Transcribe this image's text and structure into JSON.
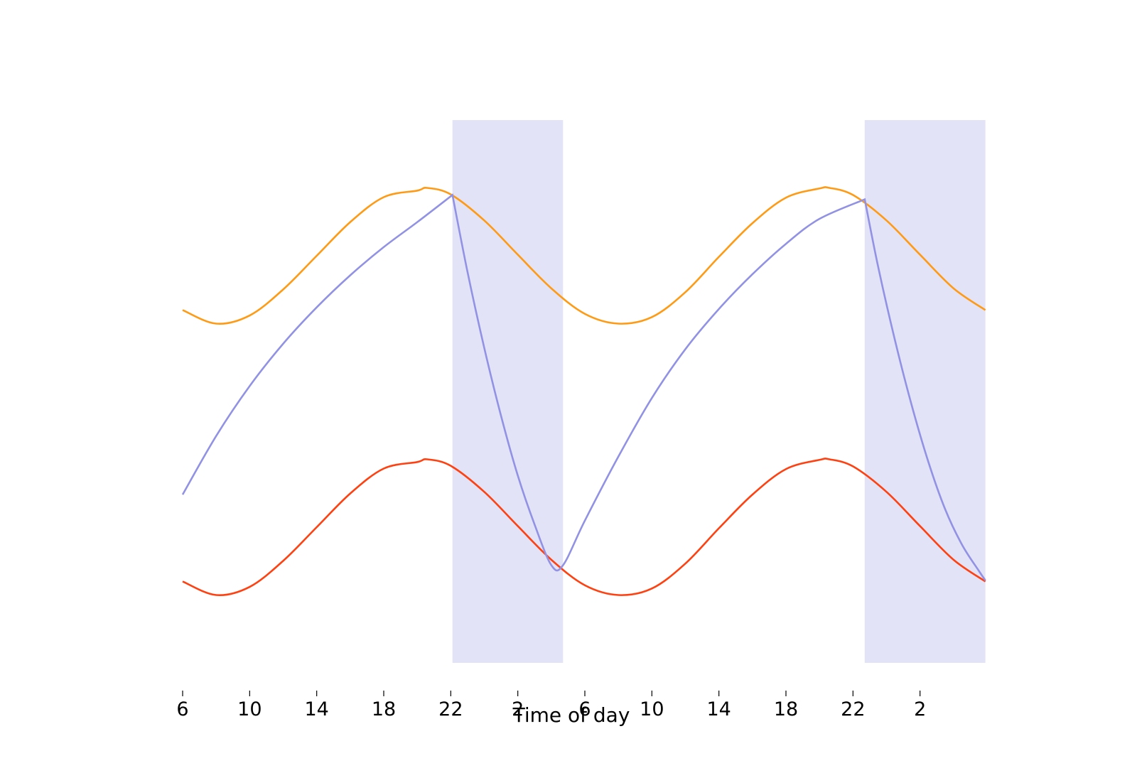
{
  "chart_data": {
    "type": "line",
    "title": "",
    "xlabel": "Time of day",
    "ylabel": "",
    "x_unit": "hours",
    "xlim": [
      6,
      54
    ],
    "ylim": [
      0,
      1
    ],
    "x_ticks": [
      {
        "x": 6,
        "label": "6"
      },
      {
        "x": 10,
        "label": "10"
      },
      {
        "x": 14,
        "label": "14"
      },
      {
        "x": 18,
        "label": "18"
      },
      {
        "x": 22,
        "label": "22"
      },
      {
        "x": 26,
        "label": "2"
      },
      {
        "x": 30,
        "label": "6"
      },
      {
        "x": 34,
        "label": "10"
      },
      {
        "x": 38,
        "label": "14"
      },
      {
        "x": 42,
        "label": "18"
      },
      {
        "x": 46,
        "label": "22"
      },
      {
        "x": 50,
        "label": "2"
      }
    ],
    "grid": false,
    "legend": "none",
    "shaded_regions": [
      {
        "x_start": 22.1,
        "x_end": 28.7,
        "y_start": 0,
        "y_end": 1,
        "color": "#e3e3f7"
      },
      {
        "x_start": 46.7,
        "x_end": 53.9,
        "y_start": 0,
        "y_end": 1,
        "color": "#e3e3f7"
      }
    ],
    "series": [
      {
        "color": "#ff9a14",
        "x": [
          6,
          8,
          10,
          12,
          14,
          16,
          18,
          20,
          20.6,
          22,
          24,
          26,
          28,
          30,
          32,
          34,
          36,
          38,
          40,
          42,
          44,
          44.6,
          46,
          48,
          50,
          52,
          53.9
        ],
        "y": [
          0.65,
          0.625,
          0.64,
          0.688,
          0.75,
          0.812,
          0.858,
          0.87,
          0.875,
          0.863,
          0.815,
          0.752,
          0.69,
          0.643,
          0.625,
          0.637,
          0.683,
          0.748,
          0.81,
          0.857,
          0.874,
          0.875,
          0.862,
          0.815,
          0.752,
          0.69,
          0.65
        ]
      },
      {
        "color": "#ff4010",
        "x": [
          6,
          8,
          10,
          12,
          14,
          16,
          18,
          20,
          20.6,
          22,
          24,
          26,
          28,
          30,
          32,
          34,
          36,
          38,
          40,
          42,
          44,
          44.6,
          46,
          48,
          50,
          52,
          53.9
        ],
        "y": [
          0.15,
          0.125,
          0.14,
          0.188,
          0.25,
          0.312,
          0.358,
          0.37,
          0.375,
          0.363,
          0.315,
          0.252,
          0.19,
          0.143,
          0.125,
          0.137,
          0.183,
          0.248,
          0.31,
          0.357,
          0.374,
          0.375,
          0.362,
          0.315,
          0.252,
          0.19,
          0.15
        ]
      },
      {
        "color": "#9292e4",
        "x": [
          6,
          8,
          10,
          12,
          14,
          16,
          18,
          20,
          22.1,
          23,
          24,
          25,
          26,
          27,
          28,
          28.7,
          30,
          32,
          34,
          36,
          38,
          40,
          42,
          44,
          46.7,
          47.5,
          48.5,
          49.5,
          50.5,
          51.5,
          52.5,
          53.5,
          53.9
        ],
        "y": [
          0.31,
          0.418,
          0.51,
          0.588,
          0.655,
          0.714,
          0.766,
          0.812,
          0.862,
          0.72,
          0.58,
          0.455,
          0.345,
          0.255,
          0.18,
          0.18,
          0.262,
          0.38,
          0.488,
          0.578,
          0.652,
          0.716,
          0.772,
          0.818,
          0.854,
          0.73,
          0.595,
          0.475,
          0.37,
          0.283,
          0.218,
          0.17,
          0.152
        ]
      }
    ]
  }
}
